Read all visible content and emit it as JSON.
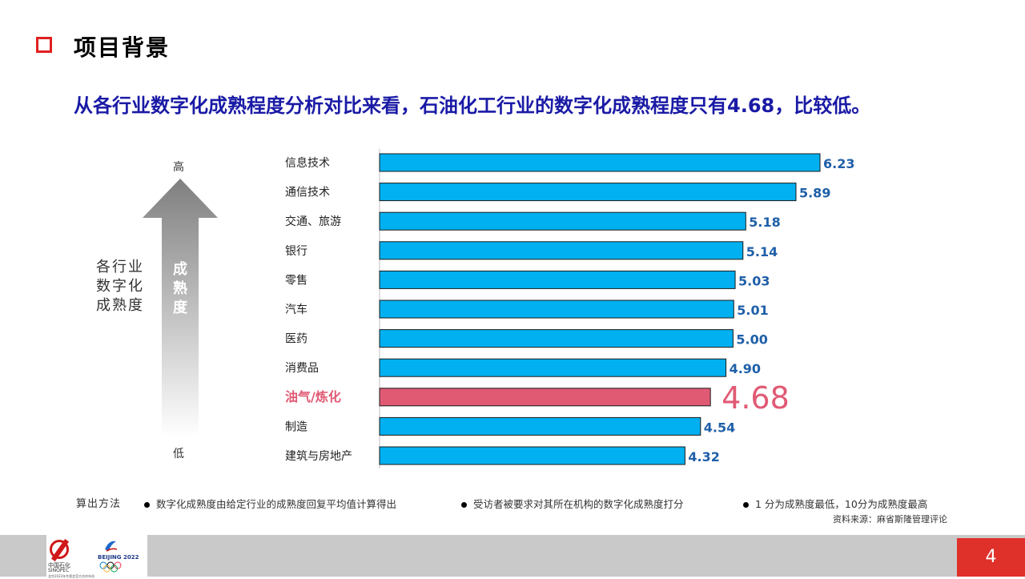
{
  "header": {
    "title": "项目背景"
  },
  "subtitle": "从各行业数字化成熟程度分析对比来看，石油化工行业的数字化成熟程度只有4.68，比较低。",
  "side": {
    "lines": [
      "各行业",
      "数字化",
      "成熟度"
    ],
    "arrow_text": "成熟度",
    "high": "高",
    "low": "低"
  },
  "chart_data": {
    "type": "bar",
    "orientation": "horizontal",
    "categories": [
      "信息技术",
      "通信技术",
      "交通、旅游",
      "银行",
      "零售",
      "汽车",
      "医药",
      "消费品",
      "油气/炼化",
      "制造",
      "建筑与房地产"
    ],
    "value_labels": [
      "6.23",
      "5.89",
      "5.18",
      "5.14",
      "5.03",
      "5.01",
      "5.00",
      "4.90",
      "4.68",
      "4.54",
      "4.32"
    ],
    "values": [
      6.23,
      5.89,
      5.18,
      5.14,
      5.03,
      5.01,
      5.0,
      4.9,
      4.68,
      4.54,
      4.32
    ],
    "highlight_index": 8,
    "colors": {
      "bar": "#00b0f0",
      "highlight": "#e05a74",
      "label": "#1f5fa8"
    },
    "grid": false,
    "xaxis_visible": false
  },
  "notes": {
    "method_label": "算出方法",
    "items": [
      "数字化成熟度由给定行业的成熟度回复平均值计算得出",
      "受访者被要求对其所在机构的数字化成熟度打分",
      "1 分为成熟度最低，10分为成熟度最高"
    ],
    "source": "资料来源：麻省斯隆管理评论"
  },
  "footer": {
    "logo_cn": "中国石化",
    "logo_en": "SINOPEC",
    "logo_bj": "BEIJING 2022",
    "logo_small": "北京2022年冬奥会官方合作伙伴",
    "page_number": "4"
  }
}
